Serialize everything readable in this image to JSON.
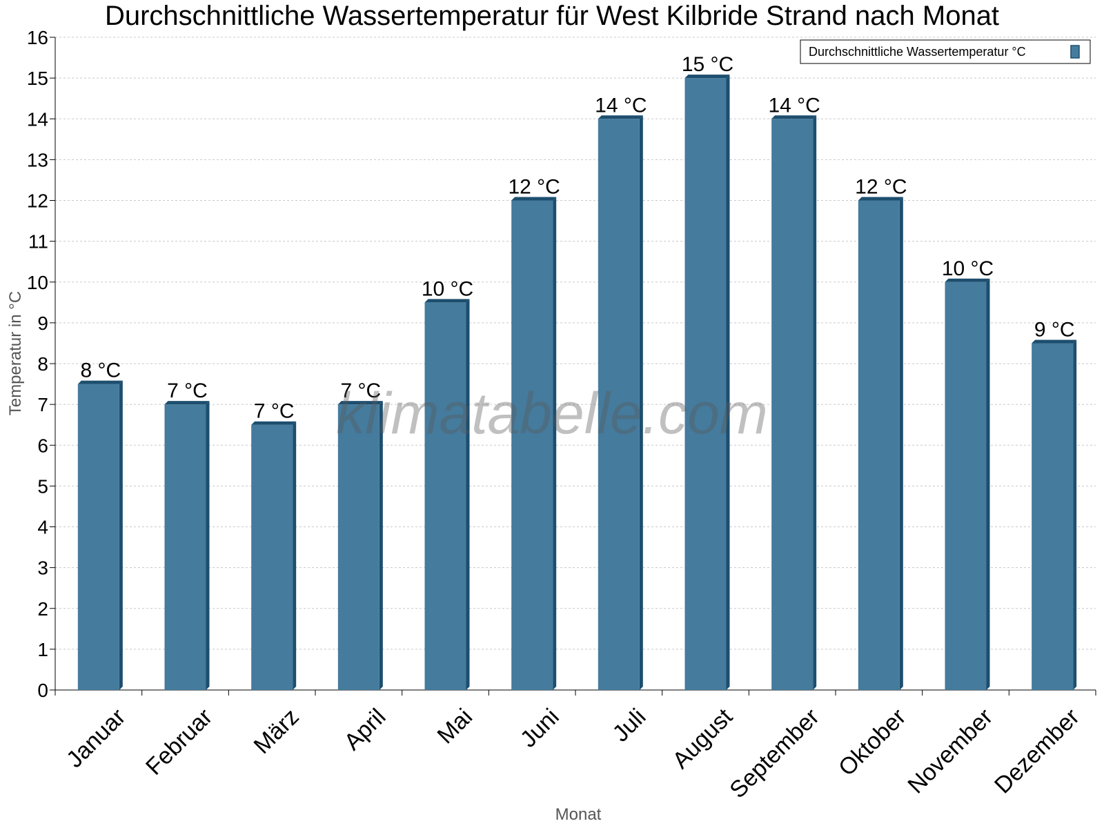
{
  "chart_data": {
    "type": "bar",
    "title": "Durchschnittliche Wassertemperatur für West Kilbride Strand nach Monat",
    "xlabel": "Monat",
    "ylabel": "Temperatur in °C",
    "ylim": [
      0,
      16
    ],
    "yticks": [
      0,
      1,
      2,
      3,
      4,
      5,
      6,
      7,
      8,
      9,
      10,
      11,
      12,
      13,
      14,
      15,
      16
    ],
    "grid": true,
    "legend_position": "top-right",
    "categories": [
      "Januar",
      "Februar",
      "März",
      "April",
      "Mai",
      "Juni",
      "Juli",
      "August",
      "September",
      "Oktober",
      "November",
      "Dezember"
    ],
    "series": [
      {
        "name": "Durchschnittliche Wassertemperatur °C",
        "values": [
          7.5,
          7.0,
          6.5,
          7.0,
          9.5,
          12.0,
          14.0,
          15.0,
          14.0,
          12.0,
          10.0,
          8.5
        ],
        "labels": [
          "8 °C",
          "7 °C",
          "7 °C",
          "7 °C",
          "10 °C",
          "12 °C",
          "14 °C",
          "15 °C",
          "14 °C",
          "12 °C",
          "10 °C",
          "9 °C"
        ],
        "color": "#457b9d",
        "edge_color": "#1d4e6e"
      }
    ],
    "watermark": "klimatabelle.com"
  }
}
